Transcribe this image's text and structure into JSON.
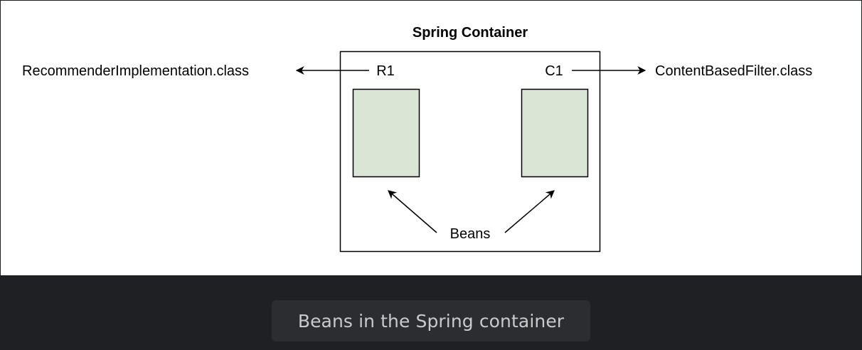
{
  "diagram": {
    "container_title": "Spring Container",
    "left_bean_label": "R1",
    "right_bean_label": "C1",
    "left_class_name": "RecommenderImplementation.class",
    "right_class_name": "ContentBasedFilter.class",
    "beans_label": "Beans",
    "colors": {
      "bean_fill": "#d9e6d6",
      "stroke": "#000000",
      "background": "#ffffff"
    }
  },
  "caption": {
    "text": "Beans in the Spring container"
  }
}
